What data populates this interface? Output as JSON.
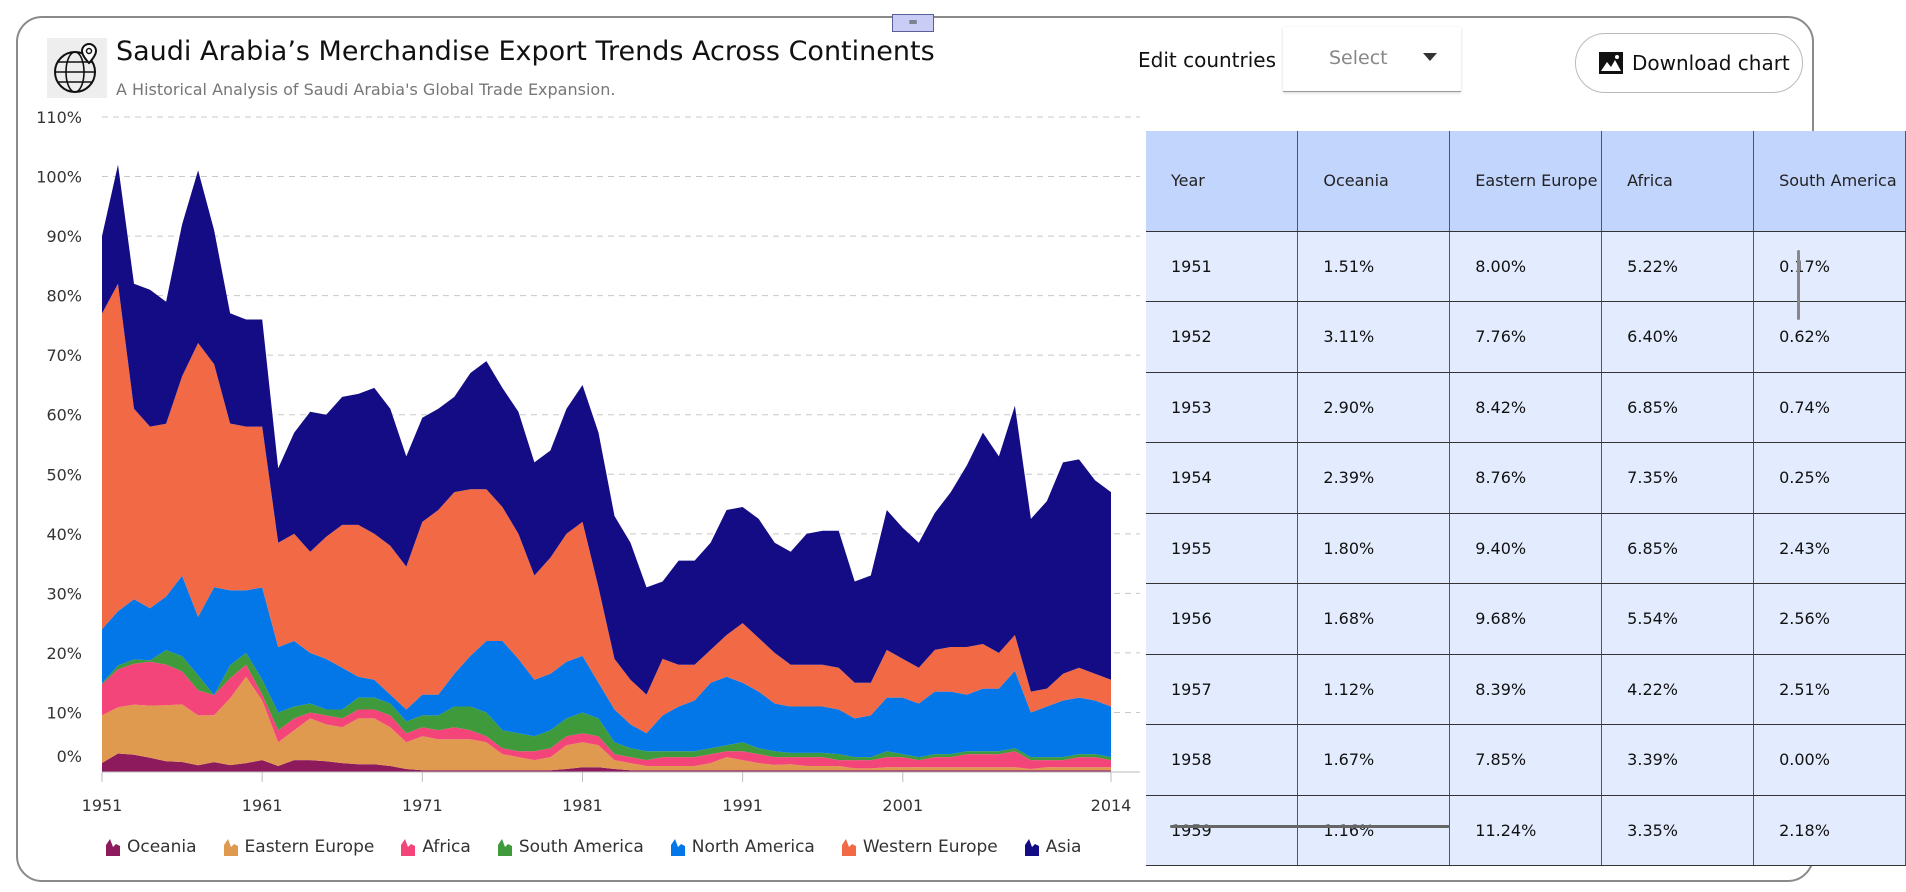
{
  "header": {
    "title": "Saudi Arabia’s Merchandise Export Trends Across Continents",
    "subtitle": "A Historical Analysis of Saudi Arabia's Global Trade Expansion.",
    "edit_label": "Edit countries",
    "select_value": "Select",
    "download_label": "Download chart",
    "handle_glyph": "═"
  },
  "icons": {
    "logo": "globe-pin-icon",
    "download": "image-icon",
    "select": "caret-down-icon"
  },
  "chart_data": {
    "type": "area",
    "stacked": true,
    "title": "Saudi Arabia’s Merchandise Export Trends Across Continents",
    "subtitle": "A Historical Analysis of Saudi Arabia's Global Trade Expansion.",
    "xlabel": "",
    "ylabel": "",
    "xlim": [
      1951,
      2014
    ],
    "x_ticks": [
      "1951",
      "1961",
      "1971",
      "1981",
      "1991",
      "2001",
      "2014"
    ],
    "ylim": [
      0,
      110
    ],
    "y_ticks": [
      "0%",
      "10%",
      "20%",
      "30%",
      "40%",
      "50%",
      "60%",
      "70%",
      "80%",
      "90%",
      "100%",
      "110%"
    ],
    "grid": "horizontal-dashed",
    "legend": "bottom",
    "x_start": 1951,
    "series": [
      {
        "name": "Oceania",
        "color": "#8e1a5e",
        "values": [
          1.51,
          3.11,
          2.9,
          2.39,
          1.8,
          1.68,
          1.12,
          1.67,
          1.16,
          1.5,
          2,
          1,
          2,
          2,
          1.8,
          1.5,
          1.3,
          1.3,
          1,
          0.5,
          0.3,
          0.3,
          0.3,
          0.3,
          0.3,
          0.3,
          0.3,
          0.3,
          0.3,
          0.5,
          0.8,
          0.8,
          0.5,
          0.3,
          0.3,
          0.3,
          0.3,
          0.3,
          0.3,
          0.3,
          0.3,
          0.3,
          0.3,
          0.3,
          0.3,
          0.3,
          0.3,
          0.3,
          0.3,
          0.3,
          0.3,
          0.3,
          0.3,
          0.3,
          0.3,
          0.3,
          0.3,
          0.3,
          0.3,
          0.3,
          0.3,
          0.3,
          0.3,
          0.3
        ]
      },
      {
        "name": "Eastern Europe",
        "color": "#e09a4f",
        "values": [
          8.0,
          7.76,
          8.42,
          8.76,
          9.4,
          9.68,
          8.39,
          7.85,
          11.24,
          14.5,
          10,
          4,
          5,
          7,
          6.2,
          6,
          7.7,
          7.7,
          6.5,
          4.5,
          5.7,
          5.2,
          5.2,
          5.2,
          4.7,
          2.7,
          2.2,
          1.7,
          2.2,
          4,
          4.2,
          3.7,
          1.5,
          1.2,
          0.7,
          0.7,
          0.7,
          0.7,
          1.2,
          2.2,
          1.7,
          1.2,
          0.9,
          1,
          0.7,
          0.7,
          0.7,
          0.3,
          0.3,
          0.5,
          0.5,
          0.5,
          0.5,
          0.5,
          0.5,
          0.5,
          0.5,
          0.5,
          0.2,
          0.5,
          0.5,
          0.5,
          0.5,
          0.5
        ]
      },
      {
        "name": "Africa",
        "color": "#f4457a",
        "values": [
          5.22,
          6.4,
          6.85,
          7.35,
          6.85,
          5.54,
          4.22,
          3.39,
          3.35,
          2,
          1,
          2,
          2,
          1,
          1.5,
          1.5,
          1.5,
          1.5,
          2,
          1.5,
          1.5,
          1.5,
          2,
          1.5,
          1,
          1,
          1,
          1.5,
          1.5,
          1.5,
          1.5,
          1.5,
          1,
          1,
          1,
          1.5,
          1.5,
          1.5,
          1.5,
          1,
          1.5,
          1.5,
          1.3,
          1.2,
          1.5,
          1.5,
          1,
          1.4,
          1.4,
          1.7,
          1.7,
          1.2,
          1.7,
          1.7,
          2.2,
          2.2,
          2.2,
          2.7,
          1.5,
          1.2,
          1.2,
          1.7,
          1.7,
          1.2
        ]
      },
      {
        "name": "South America",
        "color": "#3f9a3b",
        "values": [
          0.17,
          0.62,
          0.74,
          0.25,
          2.43,
          2.56,
          2.51,
          0.0,
          2.18,
          2,
          2.5,
          3,
          2,
          1.5,
          1,
          1.5,
          2,
          2,
          2,
          2,
          2,
          2.5,
          3.5,
          4,
          4,
          3,
          3,
          2.5,
          3,
          3,
          3.5,
          3,
          2,
          1.5,
          1.5,
          1,
          1,
          1,
          1,
          1,
          1.5,
          1,
          1,
          0.7,
          0.7,
          0.7,
          1,
          0.5,
          0.5,
          1,
          0.5,
          0.5,
          0.5,
          0.5,
          0.5,
          0.5,
          0.5,
          0.5,
          0.5,
          0.5,
          0.5,
          0.5,
          0.5,
          0.5
        ]
      },
      {
        "name": "North America",
        "color": "#0477e8",
        "values": [
          9.1,
          9.1,
          10.1,
          8.75,
          9,
          13.5,
          9.8,
          18.1,
          12.6,
          10.5,
          15.5,
          11,
          11,
          8.5,
          8.5,
          7,
          3.5,
          3,
          1.5,
          2,
          3.5,
          3.5,
          5.5,
          8.5,
          12,
          15,
          12.5,
          9.5,
          9.5,
          9.5,
          9.5,
          6,
          5.5,
          4,
          3,
          6,
          7.5,
          8.5,
          11,
          11.5,
          10,
          9.5,
          8,
          7.8,
          7.8,
          7.8,
          7.5,
          6.5,
          7,
          9,
          9.5,
          9,
          10.5,
          10.5,
          9.5,
          10.5,
          10.5,
          13,
          7.5,
          8.5,
          9.5,
          9.5,
          9,
          8.5
        ]
      },
      {
        "name": "Western Europe",
        "color": "#f26a45",
        "values": [
          53,
          55,
          32,
          30.5,
          29,
          33.5,
          46,
          37.5,
          28,
          27.5,
          27,
          17.5,
          18,
          17,
          20.5,
          24,
          25.5,
          24.5,
          25,
          24,
          29,
          31,
          30.5,
          28,
          25.5,
          22.5,
          21,
          17.5,
          19.5,
          21.5,
          22.5,
          16,
          8.5,
          7.5,
          6.5,
          9.5,
          7,
          6,
          5.5,
          7,
          10,
          9,
          8.5,
          7,
          7,
          7,
          7,
          6,
          5.5,
          8,
          6.5,
          6,
          7,
          7.5,
          8,
          7.5,
          6,
          6,
          3.5,
          3,
          4.5,
          5,
          4.5,
          4.5
        ]
      },
      {
        "name": "Asia",
        "color": "#140c85",
        "values": [
          13,
          20,
          21,
          23,
          20.5,
          25.5,
          29,
          22.5,
          18.5,
          18,
          18,
          12.5,
          17,
          23.5,
          20.5,
          21.5,
          22,
          24.5,
          23,
          18.5,
          17.5,
          17,
          16,
          19.5,
          21.5,
          20,
          20.5,
          19,
          18,
          21,
          23,
          26,
          24,
          23,
          18,
          13,
          17.5,
          17.5,
          18,
          21,
          19.5,
          20,
          18.5,
          19,
          22,
          22.5,
          23,
          17,
          18,
          23.5,
          22,
          21,
          23,
          26,
          30.5,
          35.5,
          33,
          38.5,
          29,
          31.5,
          35.5,
          35,
          32.5,
          31.5
        ]
      }
    ]
  },
  "table": {
    "columns": [
      "Year",
      "Oceania",
      "Eastern Europe",
      "Africa",
      "South America"
    ],
    "rows": [
      [
        "1951",
        "1.51%",
        "8.00%",
        "5.22%",
        "0.17%"
      ],
      [
        "1952",
        "3.11%",
        "7.76%",
        "6.40%",
        "0.62%"
      ],
      [
        "1953",
        "2.90%",
        "8.42%",
        "6.85%",
        "0.74%"
      ],
      [
        "1954",
        "2.39%",
        "8.76%",
        "7.35%",
        "0.25%"
      ],
      [
        "1955",
        "1.80%",
        "9.40%",
        "6.85%",
        "2.43%"
      ],
      [
        "1956",
        "1.68%",
        "9.68%",
        "5.54%",
        "2.56%"
      ],
      [
        "1957",
        "1.12%",
        "8.39%",
        "4.22%",
        "2.51%"
      ],
      [
        "1958",
        "1.67%",
        "7.85%",
        "3.39%",
        "0.00%"
      ],
      [
        "1959",
        "1.16%",
        "11.24%",
        "3.35%",
        "2.18%"
      ]
    ]
  }
}
